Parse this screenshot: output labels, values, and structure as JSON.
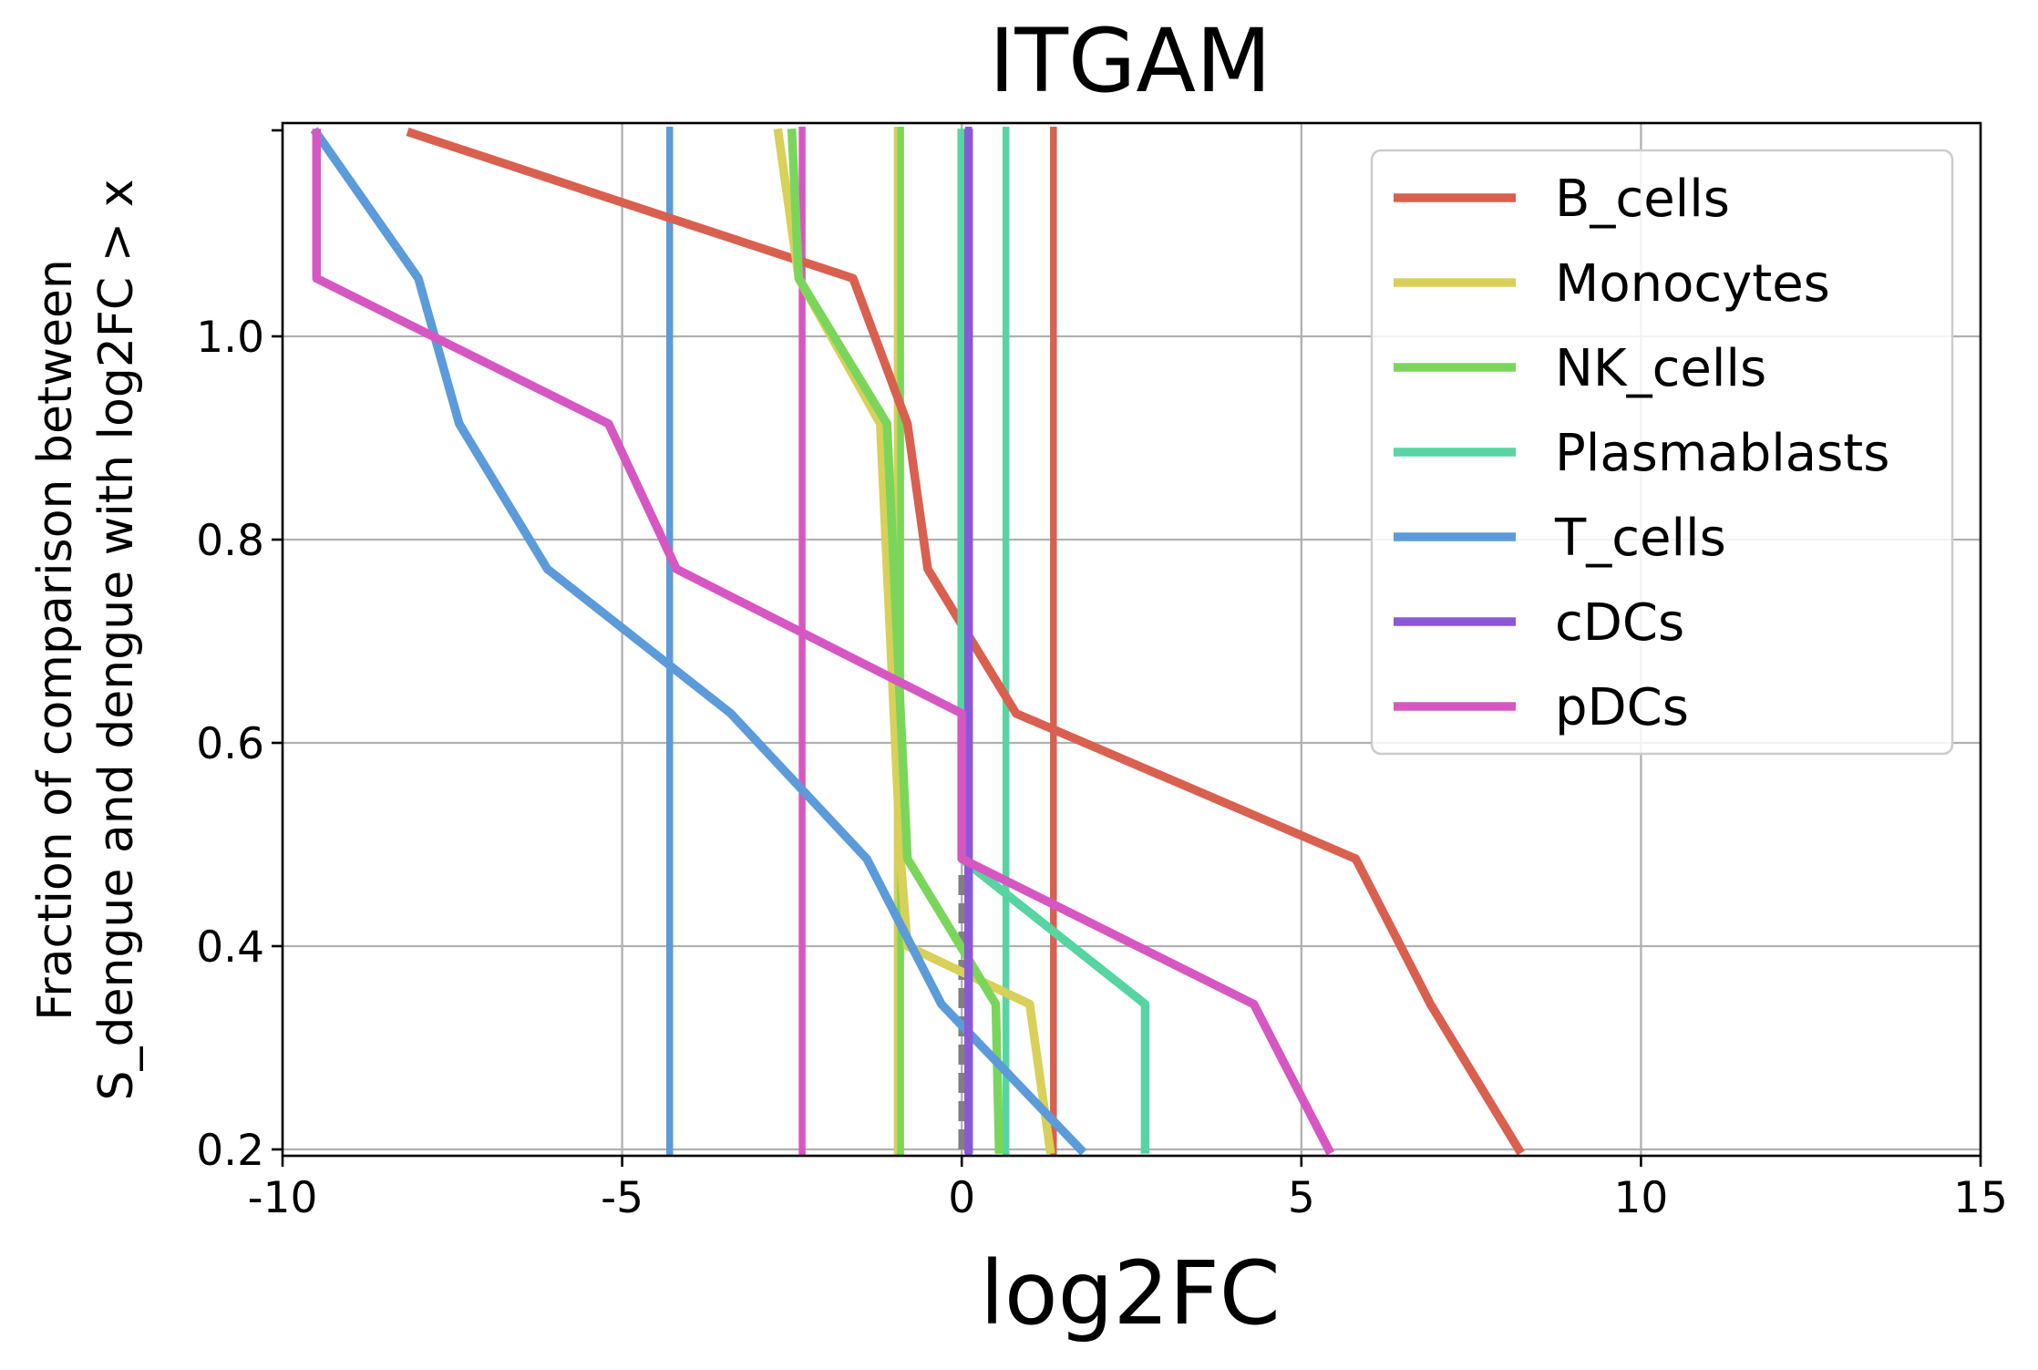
{
  "chart_data": {
    "type": "line",
    "title": "ITGAM",
    "xlabel": "log2FC",
    "ylabel_lines": [
      "Fraction of comparison between",
      "S_dengue and dengue with log2FC > x"
    ],
    "xlim": [
      -10,
      15
    ],
    "ylim": [
      0.19,
      1.2
    ],
    "x_ticks": [
      -10,
      -5,
      0,
      5,
      10,
      15
    ],
    "x_tick_labels": [
      "-10",
      "-5",
      "0",
      "5",
      "10",
      "15"
    ],
    "y_ticks": [
      0.2,
      0.4,
      0.6,
      0.8,
      1.0
    ],
    "y_tick_labels": [
      "0.2",
      "0.4",
      "0.6",
      "0.8",
      "1.0"
    ],
    "grid": true,
    "legend_position": "top-right",
    "series": [
      {
        "name": "B_cells",
        "color": "#d9604f",
        "x": [
          -8.1,
          -1.6,
          -0.8,
          -0.5,
          0.8,
          5.8,
          6.9,
          8.2
        ],
        "y": [
          1.2,
          1.057,
          0.914,
          0.771,
          0.629,
          0.486,
          0.343,
          0.2
        ]
      },
      {
        "name": "Monocytes",
        "color": "#d8d058",
        "x": [
          -2.7,
          -2.4,
          -1.2,
          -1.1,
          -1.0,
          -0.9,
          -0.8,
          1.0,
          1.3
        ],
        "y": [
          1.2,
          1.057,
          0.914,
          0.771,
          0.629,
          0.486,
          0.4,
          0.343,
          0.2
        ]
      },
      {
        "name": "NK_cells",
        "color": "#79d65b",
        "x": [
          -2.5,
          -2.4,
          -1.1,
          -1.0,
          -0.9,
          -0.8,
          0.5,
          0.55
        ],
        "y": [
          1.2,
          1.057,
          0.914,
          0.771,
          0.629,
          0.486,
          0.343,
          0.2
        ]
      },
      {
        "name": "Plasmablasts",
        "color": "#56d5a3",
        "x": [
          0.0,
          0.0,
          0.0,
          0.0,
          0.0,
          0.0,
          2.7,
          2.7
        ],
        "y": [
          1.2,
          1.057,
          0.914,
          0.771,
          0.629,
          0.486,
          0.343,
          0.2
        ]
      },
      {
        "name": "T_cells",
        "color": "#5b9bd9",
        "x": [
          -9.5,
          -8.0,
          -7.4,
          -6.1,
          -3.4,
          -1.4,
          -0.3,
          1.75
        ],
        "y": [
          1.2,
          1.057,
          0.914,
          0.771,
          0.629,
          0.486,
          0.343,
          0.2
        ]
      },
      {
        "name": "cDCs",
        "color": "#8b58d6",
        "x": [
          0.1,
          0.1,
          0.1,
          0.1,
          0.1,
          0.1,
          0.1,
          0.1
        ],
        "y": [
          1.2,
          1.057,
          0.914,
          0.771,
          0.629,
          0.486,
          0.343,
          0.2
        ]
      },
      {
        "name": "pDCs",
        "color": "#d657c2",
        "x": [
          -9.5,
          -9.5,
          -5.2,
          -4.2,
          0.0,
          0.0,
          4.3,
          5.4
        ],
        "y": [
          1.2,
          1.057,
          0.914,
          0.771,
          0.629,
          0.486,
          0.343,
          0.2
        ]
      }
    ],
    "vertical_lines": [
      {
        "series": "B_cells",
        "x": 1.35,
        "color": "#d9604f"
      },
      {
        "series": "Monocytes",
        "x": -0.95,
        "color": "#d8d058"
      },
      {
        "series": "NK_cells",
        "x": -0.9,
        "color": "#79d65b"
      },
      {
        "series": "Plasmablasts",
        "x": 0.65,
        "color": "#56d5a3"
      },
      {
        "series": "T_cells",
        "x": -4.3,
        "color": "#5b9bd9"
      },
      {
        "series": "cDCs",
        "x": 0.1,
        "color": "#8b58d6"
      },
      {
        "series": "pDCs",
        "x": -2.35,
        "color": "#d657c2"
      },
      {
        "series": "zero",
        "x": 0.0,
        "color": "#808080",
        "dashed": true,
        "y_top": 0.47
      }
    ]
  }
}
